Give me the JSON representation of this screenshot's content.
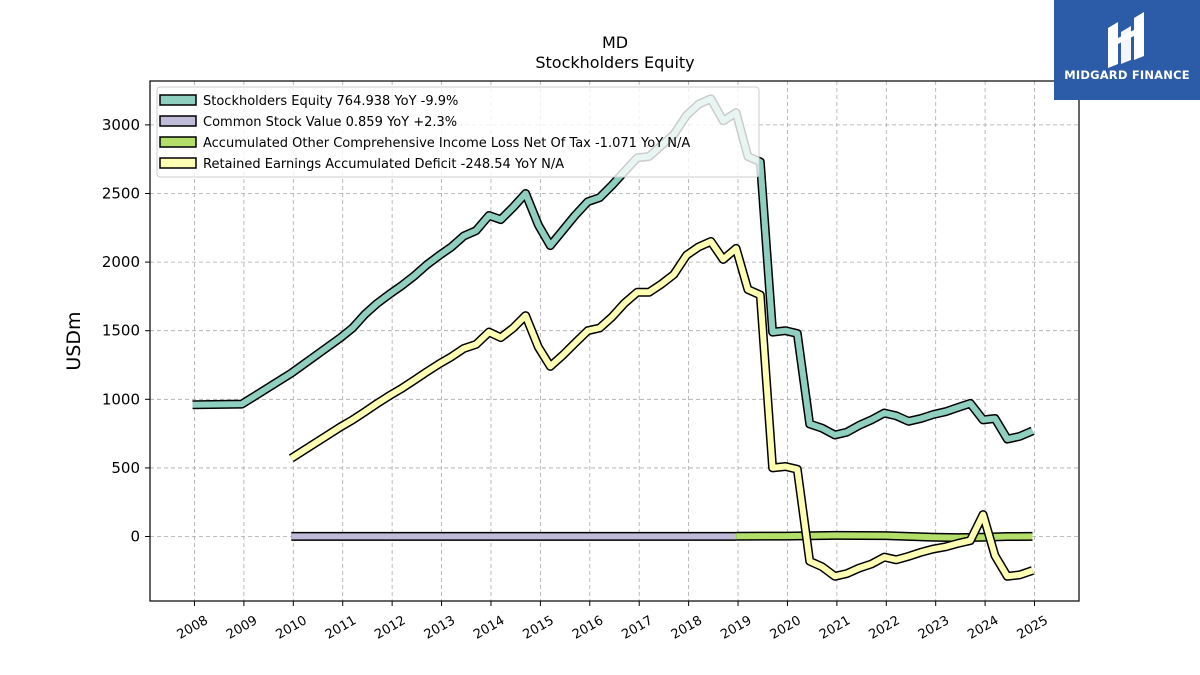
{
  "brand": {
    "name": "MIDGARD FINANCE",
    "bg_color": "#2c5ba8",
    "icon": "midgard-logo-icon"
  },
  "chart_data": {
    "type": "line",
    "title": "MD",
    "subtitle": "Stockholders  Equity",
    "xlabel": "",
    "ylabel": "USDm",
    "xlim": [
      2007.1,
      2025.9
    ],
    "ylim": [
      -470,
      3320
    ],
    "x_ticks": [
      2008,
      2009,
      2010,
      2011,
      2012,
      2013,
      2014,
      2015,
      2016,
      2017,
      2018,
      2019,
      2020,
      2021,
      2022,
      2023,
      2024,
      2025
    ],
    "y_ticks": [
      0,
      500,
      1000,
      1500,
      2000,
      2500,
      3000
    ],
    "grid": true,
    "legend_position": "top-left",
    "series": [
      {
        "name": "Stockholders Equity",
        "legend": "Stockholders Equity  764.938 YoY -9.9%",
        "color": "#8ecfc0",
        "points": [
          [
            2007.96,
            960
          ],
          [
            2008.96,
            965
          ],
          [
            2009.96,
            1190
          ],
          [
            2010.96,
            1450
          ],
          [
            2011.2,
            1520
          ],
          [
            2011.45,
            1620
          ],
          [
            2011.7,
            1700
          ],
          [
            2011.96,
            1770
          ],
          [
            2012.2,
            1830
          ],
          [
            2012.45,
            1900
          ],
          [
            2012.7,
            1980
          ],
          [
            2012.96,
            2050
          ],
          [
            2013.2,
            2110
          ],
          [
            2013.45,
            2190
          ],
          [
            2013.7,
            2230
          ],
          [
            2013.96,
            2340
          ],
          [
            2014.2,
            2310
          ],
          [
            2014.45,
            2400
          ],
          [
            2014.7,
            2500
          ],
          [
            2014.96,
            2270
          ],
          [
            2015.2,
            2120
          ],
          [
            2015.45,
            2230
          ],
          [
            2015.7,
            2340
          ],
          [
            2015.96,
            2440
          ],
          [
            2016.2,
            2470
          ],
          [
            2016.45,
            2560
          ],
          [
            2016.7,
            2660
          ],
          [
            2016.96,
            2760
          ],
          [
            2017.2,
            2770
          ],
          [
            2017.45,
            2850
          ],
          [
            2017.7,
            2930
          ],
          [
            2017.96,
            3070
          ],
          [
            2018.2,
            3150
          ],
          [
            2018.45,
            3190
          ],
          [
            2018.7,
            3030
          ],
          [
            2018.96,
            3090
          ],
          [
            2019.2,
            2770
          ],
          [
            2019.45,
            2730
          ],
          [
            2019.7,
            1490
          ],
          [
            2019.96,
            1500
          ],
          [
            2020.2,
            1480
          ],
          [
            2020.45,
            820
          ],
          [
            2020.7,
            790
          ],
          [
            2020.96,
            740
          ],
          [
            2021.2,
            760
          ],
          [
            2021.45,
            810
          ],
          [
            2021.7,
            850
          ],
          [
            2021.96,
            900
          ],
          [
            2022.2,
            880
          ],
          [
            2022.45,
            840
          ],
          [
            2022.7,
            860
          ],
          [
            2022.96,
            890
          ],
          [
            2023.2,
            910
          ],
          [
            2023.45,
            940
          ],
          [
            2023.7,
            970
          ],
          [
            2023.96,
            850
          ],
          [
            2024.2,
            860
          ],
          [
            2024.45,
            710
          ],
          [
            2024.7,
            730
          ],
          [
            2024.96,
            770
          ]
        ]
      },
      {
        "name": "Common Stock Value",
        "legend": "Common Stock Value  0.859 YoY +2.3%",
        "color": "#bebcd9",
        "points": [
          [
            2009.96,
            1
          ],
          [
            2018.96,
            1
          ]
        ]
      },
      {
        "name": "Accumulated Other Comprehensive Income Loss Net Of Tax",
        "legend": "Accumulated Other Comprehensive Income Loss Net Of Tax  -1.071 YoY N/A",
        "color": "#b3de6a",
        "points": [
          [
            2018.96,
            2
          ],
          [
            2019.96,
            3
          ],
          [
            2020.96,
            8
          ],
          [
            2021.96,
            7
          ],
          [
            2022.96,
            -5
          ],
          [
            2023.45,
            -8
          ],
          [
            2023.96,
            -5
          ],
          [
            2024.45,
            0
          ],
          [
            2024.96,
            1
          ]
        ]
      },
      {
        "name": "Retained Earnings Accumulated Deficit",
        "legend": "Retained Earnings Accumulated Deficit  -248.54 YoY N/A",
        "color": "#feffb3",
        "points": [
          [
            2009.96,
            570
          ],
          [
            2010.96,
            800
          ],
          [
            2011.2,
            850
          ],
          [
            2011.45,
            910
          ],
          [
            2011.7,
            970
          ],
          [
            2011.96,
            1030
          ],
          [
            2012.2,
            1080
          ],
          [
            2012.45,
            1140
          ],
          [
            2012.7,
            1200
          ],
          [
            2012.96,
            1260
          ],
          [
            2013.2,
            1310
          ],
          [
            2013.45,
            1370
          ],
          [
            2013.7,
            1400
          ],
          [
            2013.96,
            1490
          ],
          [
            2014.2,
            1450
          ],
          [
            2014.45,
            1520
          ],
          [
            2014.7,
            1610
          ],
          [
            2014.96,
            1380
          ],
          [
            2015.2,
            1240
          ],
          [
            2015.45,
            1320
          ],
          [
            2015.7,
            1410
          ],
          [
            2015.96,
            1500
          ],
          [
            2016.2,
            1520
          ],
          [
            2016.45,
            1600
          ],
          [
            2016.7,
            1700
          ],
          [
            2016.96,
            1780
          ],
          [
            2017.2,
            1780
          ],
          [
            2017.45,
            1840
          ],
          [
            2017.7,
            1910
          ],
          [
            2017.96,
            2050
          ],
          [
            2018.2,
            2110
          ],
          [
            2018.45,
            2150
          ],
          [
            2018.7,
            2020
          ],
          [
            2018.96,
            2100
          ],
          [
            2019.2,
            1800
          ],
          [
            2019.45,
            1760
          ],
          [
            2019.7,
            500
          ],
          [
            2019.96,
            510
          ],
          [
            2020.2,
            490
          ],
          [
            2020.45,
            -180
          ],
          [
            2020.7,
            -220
          ],
          [
            2020.96,
            -290
          ],
          [
            2021.2,
            -270
          ],
          [
            2021.45,
            -230
          ],
          [
            2021.7,
            -200
          ],
          [
            2021.96,
            -150
          ],
          [
            2022.2,
            -170
          ],
          [
            2022.45,
            -145
          ],
          [
            2022.7,
            -115
          ],
          [
            2022.96,
            -90
          ],
          [
            2023.2,
            -75
          ],
          [
            2023.45,
            -50
          ],
          [
            2023.7,
            -30
          ],
          [
            2023.96,
            160
          ],
          [
            2024.2,
            -140
          ],
          [
            2024.45,
            -290
          ],
          [
            2024.7,
            -280
          ],
          [
            2024.96,
            -248
          ]
        ]
      }
    ]
  }
}
